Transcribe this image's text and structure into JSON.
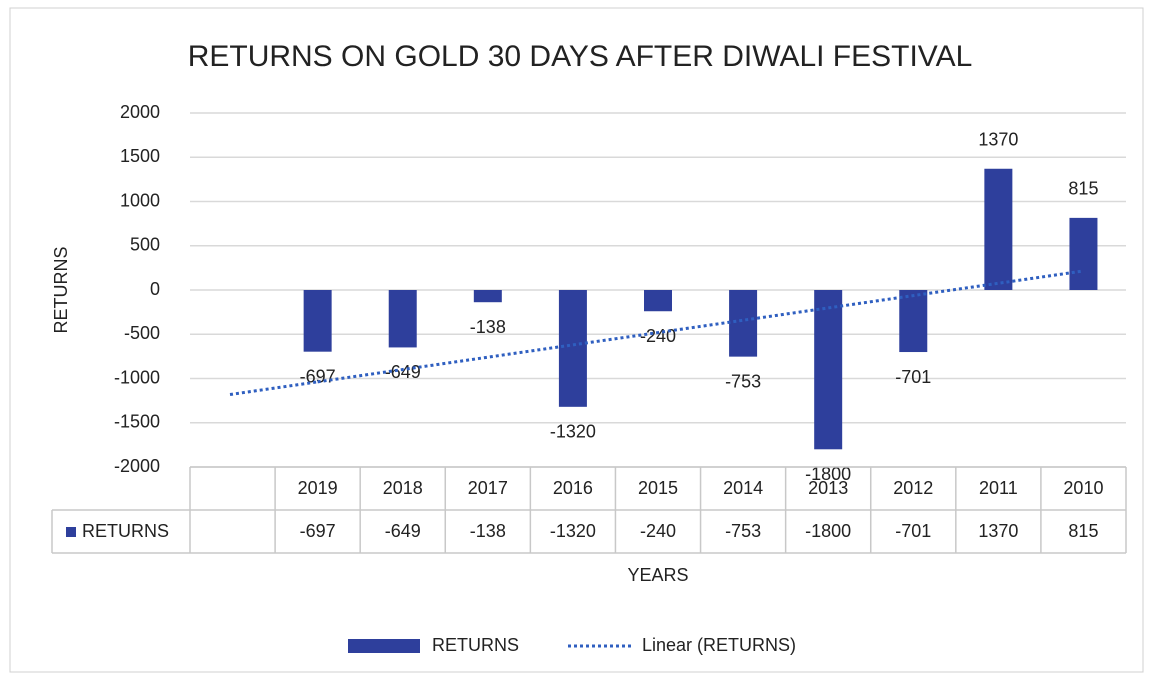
{
  "chart_data": {
    "type": "bar",
    "title": "RETURNS ON GOLD 30 DAYS AFTER DIWALI FESTIVAL",
    "x_label": "YEARS",
    "y_label": "RETURNS",
    "categories": [
      null,
      "2019",
      "2018",
      "2017",
      "2016",
      "2015",
      "2014",
      "2013",
      "2012",
      "2011",
      "2010"
    ],
    "series": [
      {
        "name": "RETURNS",
        "color": "#2e3f9c",
        "values": [
          null,
          -697,
          -649,
          -138,
          -1320,
          -240,
          -753,
          -1800,
          -701,
          1370,
          815
        ]
      }
    ],
    "trendline": {
      "name": "Linear (RETURNS)",
      "kind": "linear",
      "color": "#2f5fc0"
    },
    "ylim": [
      -2000,
      2000
    ],
    "yticks": [
      -2000,
      -1500,
      -1000,
      -500,
      0,
      500,
      1000,
      1500,
      2000
    ],
    "grid": true,
    "legend": "bottom",
    "data_table": true
  }
}
